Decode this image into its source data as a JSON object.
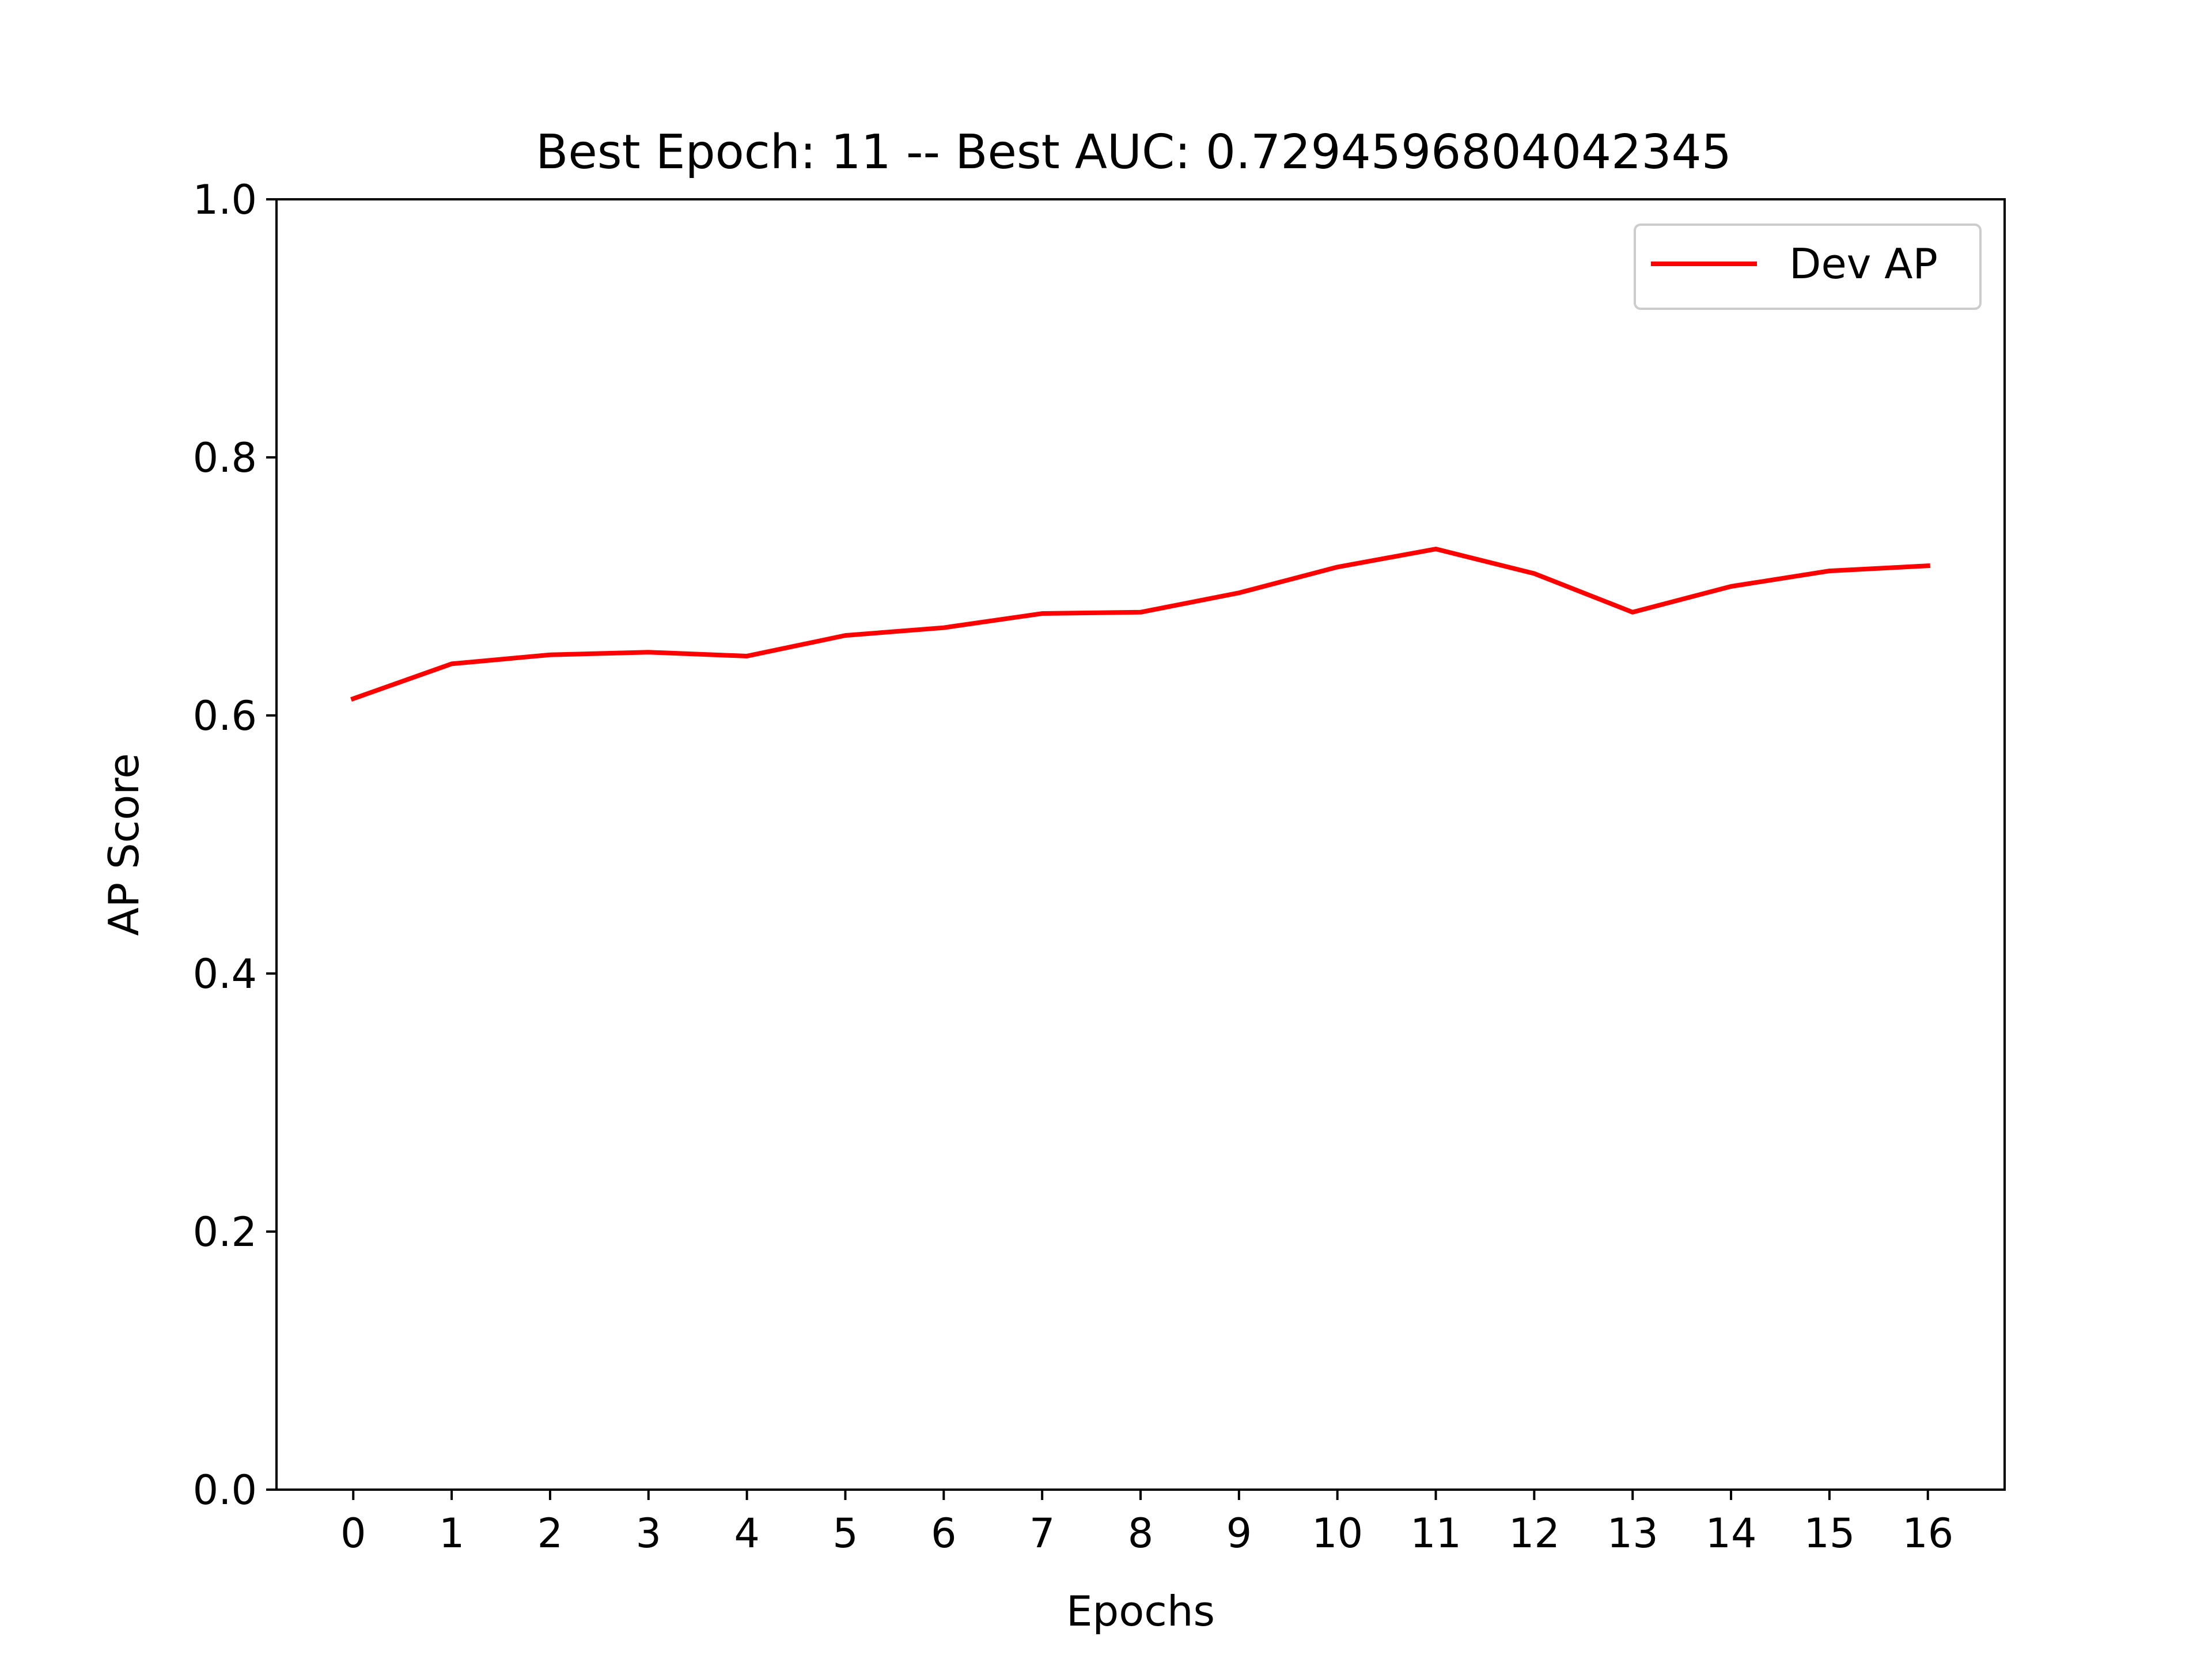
{
  "chart_data": {
    "type": "line",
    "title": "Best Epoch: 11 -- Best AUC: 0.7294596804042345",
    "xlabel": "Epochs",
    "ylabel": "AP Score",
    "x": [
      0,
      1,
      2,
      3,
      4,
      5,
      6,
      7,
      8,
      9,
      10,
      11,
      12,
      13,
      14,
      15,
      16
    ],
    "xticks": [
      "0",
      "1",
      "2",
      "3",
      "4",
      "5",
      "6",
      "7",
      "8",
      "9",
      "10",
      "11",
      "12",
      "13",
      "14",
      "15",
      "16"
    ],
    "yticks": [
      "0.0",
      "0.2",
      "0.4",
      "0.6",
      "0.8",
      "1.0"
    ],
    "ylim": [
      0,
      1
    ],
    "xlim": [
      -0.78,
      16.78
    ],
    "grid": false,
    "legend_position": "top-right",
    "series": [
      {
        "name": "Dev AP",
        "color": "#ff0000",
        "values": [
          0.613,
          0.64,
          0.647,
          0.649,
          0.646,
          0.662,
          0.668,
          0.679,
          0.68,
          0.695,
          0.715,
          0.729,
          0.71,
          0.68,
          0.7,
          0.712,
          0.716
        ]
      }
    ]
  }
}
